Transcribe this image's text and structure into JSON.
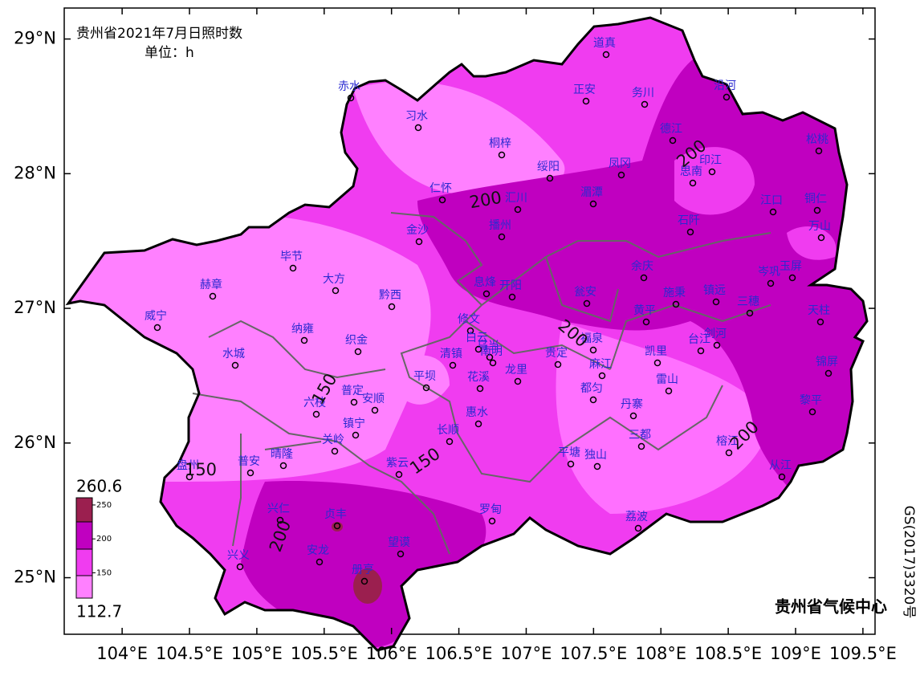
{
  "header": {
    "title": "贵州省2021年7月日照时数",
    "unit": "单位：h"
  },
  "axes": {
    "lon_range": [
      103.57,
      109.59
    ],
    "lat_range": [
      24.58,
      29.23
    ],
    "lon_ticks": [
      {
        "value": 104,
        "label": "104°E"
      },
      {
        "value": 104.5,
        "label": "104.5°E"
      },
      {
        "value": 105,
        "label": "105°E"
      },
      {
        "value": 105.5,
        "label": "105.5°E"
      },
      {
        "value": 106,
        "label": "106°E"
      },
      {
        "value": 106.5,
        "label": "106.5°E"
      },
      {
        "value": 107,
        "label": "107°E"
      },
      {
        "value": 107.5,
        "label": "107.5°E"
      },
      {
        "value": 108,
        "label": "108°E"
      },
      {
        "value": 108.5,
        "label": "108.5°E"
      },
      {
        "value": 109,
        "label": "109°E"
      },
      {
        "value": 109.5,
        "label": "109.5°E"
      }
    ],
    "lat_ticks": [
      {
        "value": 29,
        "label": "29°N"
      },
      {
        "value": 28,
        "label": "28°N"
      },
      {
        "value": 27,
        "label": "27°N"
      },
      {
        "value": 26,
        "label": "26°N"
      },
      {
        "value": 25,
        "label": "25°N"
      }
    ]
  },
  "stations": [
    "道真",
    "赤水",
    "正安",
    "务川",
    "沿河",
    "习水",
    "德江",
    "松桃",
    "桐梓",
    "绥阳",
    "凤冈",
    "印江",
    "思南",
    "仁怀",
    "汇川",
    "湄潭",
    "江口",
    "铜仁",
    "播州",
    "金沙",
    "石阡",
    "万山",
    "毕节",
    "余庆",
    "岑巩",
    "玉屏",
    "大方",
    "赫章",
    "黔西",
    "息烽",
    "开阳",
    "瓮安",
    "施秉",
    "镇远",
    "三穗",
    "天柱",
    "威宁",
    "修文",
    "黄平",
    "纳雍",
    "织金",
    "福泉",
    "白云",
    "乌当",
    "剑河",
    "台江",
    "水城",
    "清镇",
    "南明",
    "贵定",
    "凯里",
    "麻江",
    "锦屏",
    "龙里",
    "花溪",
    "平坝",
    "雷山",
    "普定",
    "安顺",
    "六枝",
    "都匀",
    "黎平",
    "丹寨",
    "惠水",
    "镇宁",
    "长顺",
    "三都",
    "关岭",
    "榕江",
    "平塘",
    "独山",
    "普安",
    "晴隆",
    "紫云",
    "从江",
    "盘州",
    "罗甸",
    "兴仁",
    "荔波",
    "贞丰",
    "望谟",
    "兴义",
    "安龙",
    "册亨"
  ],
  "contour_labels": [
    "200",
    "200",
    "200",
    "150",
    "150",
    "150",
    "200",
    "200"
  ],
  "legend": {
    "max": 260.6,
    "min": 112.7,
    "ticks": [
      250,
      200,
      150
    ]
  },
  "credit": "贵州省气候中心",
  "approval": "GS(2017)3320号"
}
